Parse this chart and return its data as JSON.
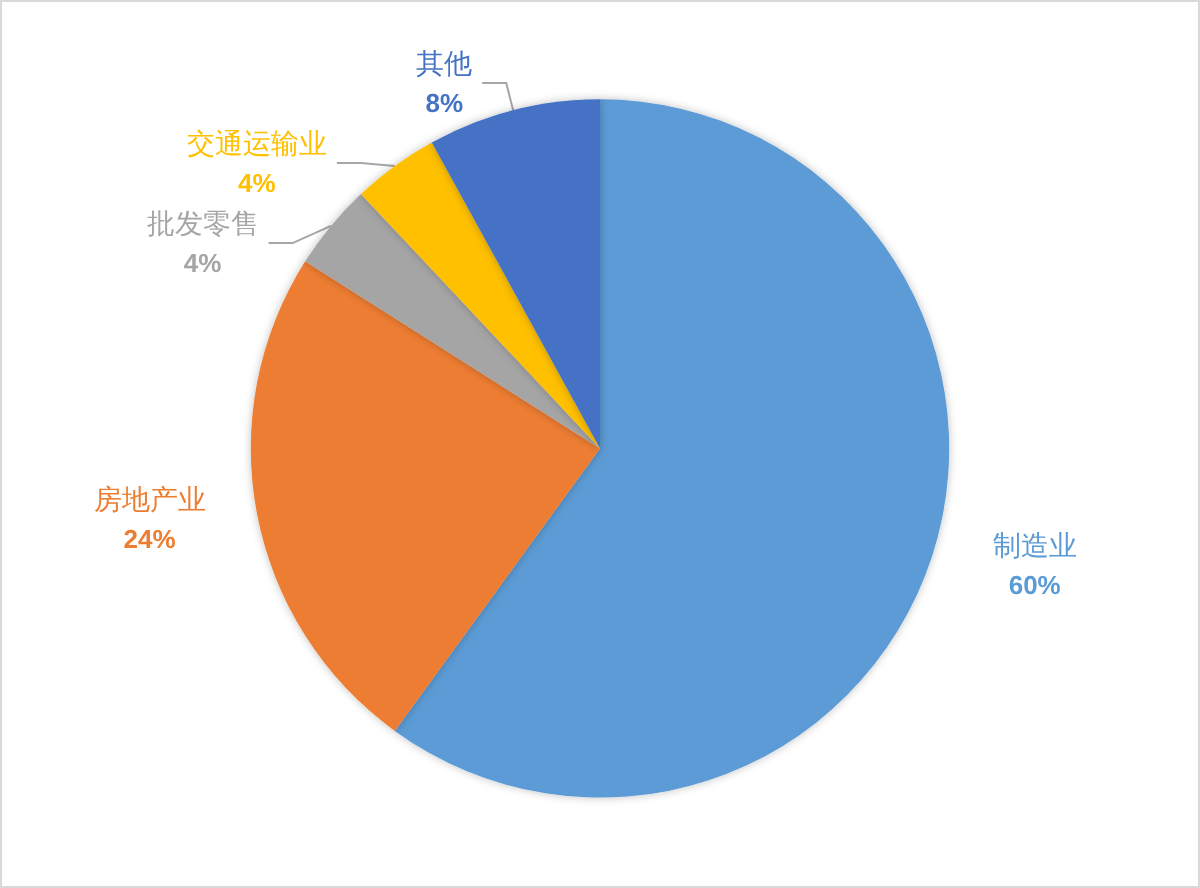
{
  "chart_data": {
    "type": "pie",
    "categories": [
      "制造业",
      "房地产业",
      "批发零售",
      "交通运输业",
      "其他"
    ],
    "values": [
      60,
      24,
      4,
      4,
      8
    ],
    "colors": [
      "#5b9bd5",
      "#ed7d31",
      "#a5a5a5",
      "#ffc000",
      "#4472c4"
    ],
    "value_labels": [
      "60%",
      "24%",
      "4%",
      "4%",
      "8%"
    ]
  }
}
